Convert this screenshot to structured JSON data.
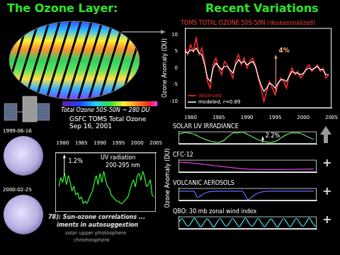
{
  "title": "The Ozone Layer:",
  "subtitle": "Recent Variations",
  "map_colorbar_label": "Total Ozone 50S-50N ~ 280 DU",
  "map_caption": "GSFC TOMS Total Ozone Sep 16, 2001",
  "sun_image_dates": [
    "1999-06-16",
    "2000-02-25"
  ],
  "components_ylabel": "Ozone Anomaly (DU)",
  "plus_signs": [
    "+",
    "+",
    "+"
  ],
  "uv_notes": [
    "78): Sun-ozone correlations ...",
    "iments in autosuggestion",
    "solar upper photosphere",
    "chromosphere"
  ],
  "chart_data": [
    {
      "type": "line",
      "title": "TOMS TOTAL OZONE 50S-50N (deseasonalized)",
      "ylabel": "Ozone Anomaly (DU)",
      "x": [
        1979,
        1979.5,
        1980,
        1980.5,
        1981,
        1981.5,
        1982,
        1982.5,
        1983,
        1983.5,
        1984,
        1984.5,
        1985,
        1985.5,
        1986,
        1986.5,
        1987,
        1987.5,
        1988,
        1988.5,
        1989,
        1989.5,
        1990,
        1990.5,
        1991,
        1991.5,
        1992,
        1992.5,
        1993,
        1993.5,
        1994,
        1994.5,
        1995,
        1995.5,
        1996,
        1996.5,
        1997,
        1997.5,
        1998,
        1998.5,
        1999,
        1999.5,
        2000,
        2000.5,
        2001,
        2001.5,
        2002,
        2002.5,
        2003,
        2003.5,
        2004,
        2004.5
      ],
      "series": [
        {
          "name": "observed",
          "color": "#ff2a2a",
          "values": [
            6,
            4,
            7,
            5,
            9,
            4,
            6,
            2,
            -4,
            -6,
            1,
            3,
            0,
            -2,
            2,
            1,
            -1,
            -3,
            2,
            4,
            1,
            3,
            0,
            2,
            3,
            1,
            -3,
            -6,
            -10,
            -7,
            -4,
            -6,
            -8,
            -5,
            -3,
            -4,
            -6,
            -2,
            0,
            -2,
            -1,
            -3,
            -2,
            0,
            1,
            -1,
            0,
            1,
            -1,
            0,
            -3,
            -2
          ]
        },
        {
          "name": "modeled, r=0.89",
          "color": "#ffffff",
          "values": [
            5,
            4.5,
            5.5,
            5,
            6,
            4.5,
            4,
            1,
            -3,
            -4,
            0,
            1.5,
            0.5,
            -0.5,
            0.5,
            0.5,
            -0.5,
            -1.5,
            1,
            2.5,
            1.5,
            2,
            1,
            1.5,
            2,
            0.5,
            -2.5,
            -5,
            -7,
            -6,
            -4.5,
            -5,
            -6,
            -4.5,
            -3.5,
            -3.5,
            -4,
            -2.5,
            -1,
            -1.5,
            -1.5,
            -2,
            -1.5,
            -0.5,
            0,
            -0.5,
            0,
            0.5,
            -0.5,
            -0.5,
            -2,
            -2
          ]
        }
      ],
      "xlim": [
        1979,
        2005
      ],
      "xticks": [
        1980,
        1985,
        1990,
        1995,
        2000,
        2005
      ],
      "ylim": [
        -12,
        12
      ],
      "yticks": [
        -10,
        -5,
        0,
        5,
        10
      ],
      "grid": false,
      "legend": "lower left",
      "annotations": [
        "4%"
      ]
    },
    {
      "type": "line",
      "title": "SOLAR UV IRRADIANCE",
      "color": "#66dd66",
      "x": [
        1979,
        1979.5,
        1980,
        1980.5,
        1981,
        1981.5,
        1982,
        1982.5,
        1983,
        1983.5,
        1984,
        1984.5,
        1985,
        1985.5,
        1986,
        1986.5,
        1987,
        1987.5,
        1988,
        1988.5,
        1989,
        1989.5,
        1990,
        1990.5,
        1991,
        1991.5,
        1992,
        1992.5,
        1993,
        1993.5,
        1994,
        1994.5,
        1995,
        1995.5,
        1996,
        1996.5,
        1997,
        1997.5,
        1998,
        1998.5,
        1999,
        1999.5,
        2000,
        2000.5,
        2001,
        2001.5,
        2002,
        2002.5,
        2003,
        2003.5,
        2004,
        2004.5
      ],
      "values": [
        1.5,
        2,
        2.3,
        2.5,
        2.2,
        2,
        1.5,
        1,
        0.3,
        -0.3,
        -0.8,
        -1.3,
        -1.7,
        -2,
        -2.2,
        -2.3,
        -2,
        -1.4,
        -0.3,
        0.8,
        1.8,
        2.4,
        2.2,
        2.5,
        2.6,
        2.2,
        1.6,
        1,
        0.2,
        -0.4,
        -1,
        -1.5,
        -1.8,
        -2.1,
        -2.3,
        -2.3,
        -2,
        -1.5,
        -0.7,
        0.2,
        1,
        1.6,
        2.1,
        2.4,
        2.2,
        2.3,
        2,
        1.5,
        0.8,
        0.2,
        -0.4,
        -0.8
      ],
      "xlim": [
        1979,
        2005
      ],
      "ylim": [
        -3,
        3
      ],
      "grid": false,
      "tick_labels": false,
      "annotations": [
        "2.2%"
      ]
    },
    {
      "type": "line",
      "title": "CFC-12",
      "color": "#e040e0",
      "x": [
        1979,
        1979.5,
        1980,
        1980.5,
        1981,
        1981.5,
        1982,
        1982.5,
        1983,
        1983.5,
        1984,
        1984.5,
        1985,
        1985.5,
        1986,
        1986.5,
        1987,
        1987.5,
        1988,
        1988.5,
        1989,
        1989.5,
        1990,
        1990.5,
        1991,
        1991.5,
        1992,
        1992.5,
        1993,
        1993.5,
        1994,
        1994.5,
        1995,
        1995.5,
        1996,
        1996.5,
        1997,
        1997.5,
        1998,
        1998.5,
        1999,
        1999.5,
        2000,
        2000.5,
        2001,
        2001.5,
        2002,
        2002.5,
        2003,
        2003.5,
        2004,
        2004.5
      ],
      "values": [
        1.8,
        1.75,
        1.7,
        1.6,
        1.5,
        1.4,
        1.3,
        1.15,
        1,
        0.85,
        0.7,
        0.55,
        0.4,
        0.25,
        0.1,
        -0.05,
        -0.2,
        -0.35,
        -0.5,
        -0.65,
        -0.8,
        -0.95,
        -1.1,
        -1.2,
        -1.3,
        -1.4,
        -1.5,
        -1.55,
        -1.6,
        -1.65,
        -1.7,
        -1.72,
        -1.75,
        -1.77,
        -1.78,
        -1.78,
        -1.78,
        -1.77,
        -1.76,
        -1.75,
        -1.73,
        -1.7,
        -1.68,
        -1.65,
        -1.62,
        -1.6,
        -1.57,
        -1.55,
        -1.52,
        -1.5,
        -1.47,
        -1.45
      ],
      "xlim": [
        1979,
        2005
      ],
      "ylim": [
        -3,
        3
      ],
      "grid": false,
      "tick_labels": false
    },
    {
      "type": "line",
      "title": "VOLCANIC AEROSOLS",
      "color": "#6a6aff",
      "x": [
        1979,
        1979.5,
        1980,
        1980.5,
        1981,
        1981.5,
        1982,
        1982.5,
        1983,
        1983.5,
        1984,
        1984.5,
        1985,
        1985.5,
        1986,
        1986.5,
        1987,
        1987.5,
        1988,
        1988.5,
        1989,
        1989.5,
        1990,
        1990.5,
        1991,
        1991.5,
        1992,
        1992.5,
        1993,
        1993.5,
        1994,
        1994.5,
        1995,
        1995.5,
        1996,
        1996.5,
        1997,
        1997.5,
        1998,
        1998.5,
        1999,
        1999.5,
        2000,
        2000.5,
        2001,
        2001.5,
        2002,
        2002.5,
        2003,
        2003.5,
        2004,
        2004.5
      ],
      "values": [
        0.5,
        0.5,
        0.5,
        0.5,
        0.5,
        0.5,
        0.4,
        -1.5,
        -1.2,
        -0.6,
        -0.1,
        0.2,
        0.4,
        0.45,
        0.5,
        0.5,
        0.5,
        0.5,
        0.5,
        0.5,
        0.5,
        0.5,
        0.5,
        0.5,
        0.5,
        -0.5,
        -2.2,
        -1.8,
        -1.1,
        -0.5,
        -0.1,
        0.2,
        0.35,
        0.45,
        0.5,
        0.5,
        0.5,
        0.5,
        0.5,
        0.5,
        0.5,
        0.5,
        0.5,
        0.5,
        0.5,
        0.5,
        0.5,
        0.5,
        0.5,
        0.5,
        0.5,
        0.5
      ],
      "xlim": [
        1979,
        2005
      ],
      "ylim": [
        -2.5,
        1.5
      ],
      "grid": false,
      "tick_labels": false
    },
    {
      "type": "line",
      "title": "QBO: 30 mb zonal wind index",
      "color": "#40e0e0",
      "x": [
        1979,
        1979.6,
        1980.2,
        1980.8,
        1981.4,
        1982,
        1982.6,
        1983.2,
        1983.8,
        1984.4,
        1985,
        1985.6,
        1986.2,
        1986.8,
        1987.4,
        1988,
        1988.6,
        1989.2,
        1989.8,
        1990.4,
        1991,
        1991.6,
        1992.2,
        1992.8,
        1993.4,
        1994,
        1994.6,
        1995.2,
        1995.8,
        1996.4,
        1997,
        1997.6,
        1998.2,
        1998.8,
        1999.4,
        2000,
        2000.6,
        2001.2,
        2001.8,
        2002.4,
        2003,
        2003.6,
        2004.2,
        2004.8
      ],
      "values": [
        0,
        1,
        0,
        -0.9,
        0,
        1.1,
        0,
        -1,
        0,
        0.9,
        0,
        -1.1,
        0,
        1,
        0,
        -0.9,
        0,
        1,
        0,
        -1,
        0,
        1.1,
        0,
        -0.9,
        0,
        1,
        0,
        -1,
        0,
        0.9,
        0,
        -1.1,
        0,
        1,
        0,
        -1,
        0,
        1,
        0,
        -0.9,
        0,
        1.1,
        0,
        -1
      ],
      "xlim": [
        1979,
        2005
      ],
      "ylim": [
        -1.5,
        1.5
      ],
      "grid": false,
      "tick_labels": false
    },
    {
      "type": "line",
      "color": "#33ff33",
      "x": [
        1979,
        1979.5,
        1980,
        1980.5,
        1981,
        1981.5,
        1982,
        1982.5,
        1983,
        1983.5,
        1984,
        1984.5,
        1985,
        1985.5,
        1986,
        1986.5,
        1987,
        1987.5,
        1988,
        1988.5,
        1989,
        1989.5,
        1990,
        1990.5,
        1991,
        1991.5,
        1992,
        1992.5,
        1993,
        1993.5,
        1994,
        1994.5,
        1995,
        1995.5,
        1996,
        1996.5,
        1997,
        1997.5,
        1998,
        1998.5,
        1999,
        1999.5,
        2000,
        2000.5,
        2001,
        2001.5,
        2002,
        2002.5,
        2003,
        2003.5,
        2004,
        2004.5
      ],
      "values": [
        6,
        8,
        7,
        9,
        6.5,
        8.5,
        7,
        5,
        6,
        4,
        4.5,
        3,
        3.5,
        2,
        2.5,
        2,
        3,
        4,
        5,
        7,
        8.5,
        6.5,
        9,
        7,
        9.5,
        7.5,
        6,
        5.5,
        4,
        3.5,
        3,
        2.5,
        2.5,
        2,
        2,
        2.5,
        3,
        3.5,
        5,
        6.5,
        7.5,
        6,
        8.5,
        9,
        7.5,
        9.5,
        8,
        6,
        6.5,
        7.5,
        4,
        3.5
      ],
      "xlim": [
        1978,
        2005
      ],
      "xticks": [
        1980,
        1985,
        1990,
        1995,
        2000,
        2005
      ],
      "ylim": [
        0,
        14
      ],
      "grid": false,
      "tick_labels": "x",
      "annotations": [
        "1.2%",
        "UV radiation",
        "200-295 nm"
      ]
    }
  ]
}
